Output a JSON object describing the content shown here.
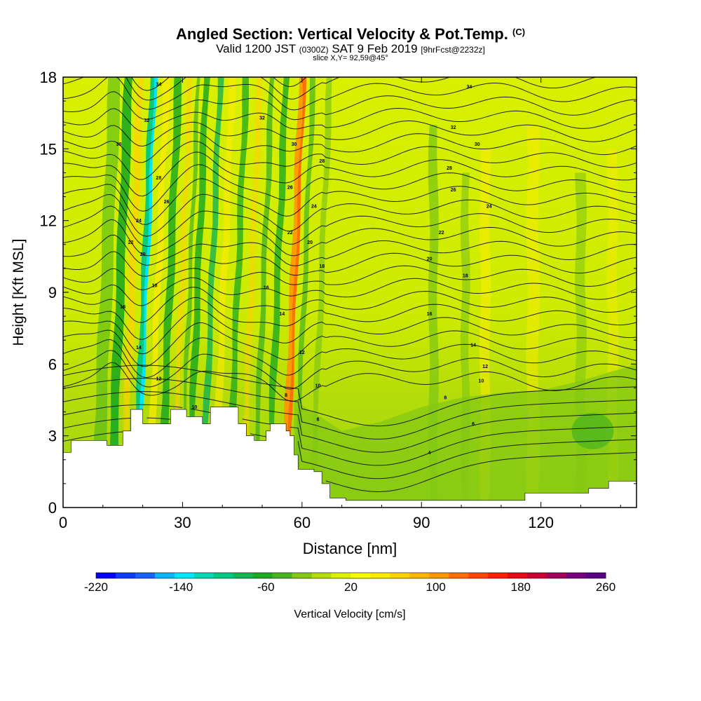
{
  "header": {
    "title_main": "Angled Section: Vertical Velocity & Pot.Temp.",
    "title_unit": "(C)",
    "valid_a": "Valid 1200 JST",
    "valid_b": "(0300Z)",
    "valid_c": "SAT 9 Feb 2019",
    "valid_d": "[9hrFcst@2232z]",
    "slice": "slice X,Y= 92,59@45°"
  },
  "chart_data": {
    "type": "heatmap",
    "title": "Angled Section: Vertical Velocity & Pot.Temp. (C)",
    "xlabel": "Distance [nm]",
    "ylabel": "Height [Kft MSL]",
    "xlim": [
      0,
      144
    ],
    "ylim": [
      0,
      18
    ],
    "x_ticks": [
      0,
      30,
      60,
      90,
      120
    ],
    "y_ticks": [
      0,
      3,
      6,
      9,
      12,
      15,
      18
    ],
    "grid": false,
    "colorbar": {
      "label": "Vertical Velocity [cm/s]",
      "range": [
        -220,
        260
      ],
      "step": 20,
      "tick_labels": [
        "-220",
        "-140",
        "-60",
        "20",
        "100",
        "180",
        "260"
      ],
      "tick_values": [
        -220,
        -140,
        -60,
        20,
        100,
        180,
        260
      ],
      "colors": [
        "#0000ff",
        "#0a3cff",
        "#1464f5",
        "#0ab4ff",
        "#00e6ff",
        "#00d7b4",
        "#00c882",
        "#14b450",
        "#1eaa1e",
        "#46b41e",
        "#82c814",
        "#b4dc0a",
        "#dcf000",
        "#f5ff00",
        "#ffeb00",
        "#ffd200",
        "#ffb400",
        "#ff9600",
        "#ff6e00",
        "#ff4600",
        "#ff1e00",
        "#e60a14",
        "#c80032",
        "#a0005a",
        "#78007d",
        "#5a0087"
      ]
    },
    "updraft_columns_nm": [
      13.5,
      19.5,
      26.0,
      33.0,
      36.5,
      43.0,
      49.5,
      53.0,
      57.0,
      59.5,
      64.0,
      93.0,
      101.0,
      130.0
    ],
    "downdraft_peak_nm": 20.0,
    "updraft_peak_nm": 57.5,
    "terrain_kft": [
      [
        0,
        2.3
      ],
      [
        2,
        2.8
      ],
      [
        9,
        2.8
      ],
      [
        11,
        2.6
      ],
      [
        14,
        2.6
      ],
      [
        15,
        3.2
      ],
      [
        17,
        4.1
      ],
      [
        19,
        4.1
      ],
      [
        20,
        3.5
      ],
      [
        25,
        3.5
      ],
      [
        27,
        4.1
      ],
      [
        30,
        4.1
      ],
      [
        31,
        3.8
      ],
      [
        33,
        3.8
      ],
      [
        35,
        3.5
      ],
      [
        37,
        4.2
      ],
      [
        42,
        4.2
      ],
      [
        44,
        3.5
      ],
      [
        46,
        3.0
      ],
      [
        48,
        2.8
      ],
      [
        51,
        3.2
      ],
      [
        52,
        3.5
      ],
      [
        56,
        3.2
      ],
      [
        57,
        3.0
      ],
      [
        58,
        2.2
      ],
      [
        59,
        1.6
      ],
      [
        63,
        1.5
      ],
      [
        65,
        1.0
      ],
      [
        67,
        0.4
      ],
      [
        71,
        0.3
      ],
      [
        115,
        0.3
      ],
      [
        116,
        0.6
      ],
      [
        123,
        0.6
      ],
      [
        132,
        0.8
      ],
      [
        137,
        1.1
      ],
      [
        144,
        1.2
      ]
    ],
    "isotherm_labels": [
      {
        "x": 24,
        "y": 17.7,
        "v": "34"
      },
      {
        "x": 21,
        "y": 16.2,
        "v": "32"
      },
      {
        "x": 14,
        "y": 15.2,
        "v": "30"
      },
      {
        "x": 24,
        "y": 13.8,
        "v": "28"
      },
      {
        "x": 26,
        "y": 12.8,
        "v": "26"
      },
      {
        "x": 19,
        "y": 12.0,
        "v": "24"
      },
      {
        "x": 17,
        "y": 11.1,
        "v": "22"
      },
      {
        "x": 20,
        "y": 10.6,
        "v": "20"
      },
      {
        "x": 23,
        "y": 9.3,
        "v": "18"
      },
      {
        "x": 15,
        "y": 8.4,
        "v": "16"
      },
      {
        "x": 19,
        "y": 6.7,
        "v": "14"
      },
      {
        "x": 24,
        "y": 5.4,
        "v": "12"
      },
      {
        "x": 33,
        "y": 4.2,
        "v": "10"
      },
      {
        "x": 51,
        "y": 18.1,
        "v": "36"
      },
      {
        "x": 50,
        "y": 16.3,
        "v": "32"
      },
      {
        "x": 58,
        "y": 15.2,
        "v": "30"
      },
      {
        "x": 65,
        "y": 14.5,
        "v": "28"
      },
      {
        "x": 57,
        "y": 13.4,
        "v": "26"
      },
      {
        "x": 63,
        "y": 12.6,
        "v": "24"
      },
      {
        "x": 57,
        "y": 11.5,
        "v": "22"
      },
      {
        "x": 62,
        "y": 11.1,
        "v": "20"
      },
      {
        "x": 65,
        "y": 10.1,
        "v": "18"
      },
      {
        "x": 51,
        "y": 9.2,
        "v": "16"
      },
      {
        "x": 55,
        "y": 8.1,
        "v": "14"
      },
      {
        "x": 60,
        "y": 6.5,
        "v": "12"
      },
      {
        "x": 64,
        "y": 5.1,
        "v": "10"
      },
      {
        "x": 56,
        "y": 4.7,
        "v": "8"
      },
      {
        "x": 64,
        "y": 3.7,
        "v": "6"
      },
      {
        "x": 102,
        "y": 17.6,
        "v": "34"
      },
      {
        "x": 98,
        "y": 15.9,
        "v": "32"
      },
      {
        "x": 104,
        "y": 15.2,
        "v": "30"
      },
      {
        "x": 97,
        "y": 14.2,
        "v": "28"
      },
      {
        "x": 98,
        "y": 13.3,
        "v": "26"
      },
      {
        "x": 107,
        "y": 12.6,
        "v": "24"
      },
      {
        "x": 95,
        "y": 11.5,
        "v": "22"
      },
      {
        "x": 92,
        "y": 10.4,
        "v": "20"
      },
      {
        "x": 101,
        "y": 9.7,
        "v": "18"
      },
      {
        "x": 92,
        "y": 8.1,
        "v": "16"
      },
      {
        "x": 103,
        "y": 6.8,
        "v": "14"
      },
      {
        "x": 106,
        "y": 5.9,
        "v": "12"
      },
      {
        "x": 105,
        "y": 5.3,
        "v": "10"
      },
      {
        "x": 96,
        "y": 4.6,
        "v": "8"
      },
      {
        "x": 103,
        "y": 3.5,
        "v": "6"
      },
      {
        "x": 92,
        "y": 2.3,
        "v": "4"
      }
    ]
  }
}
